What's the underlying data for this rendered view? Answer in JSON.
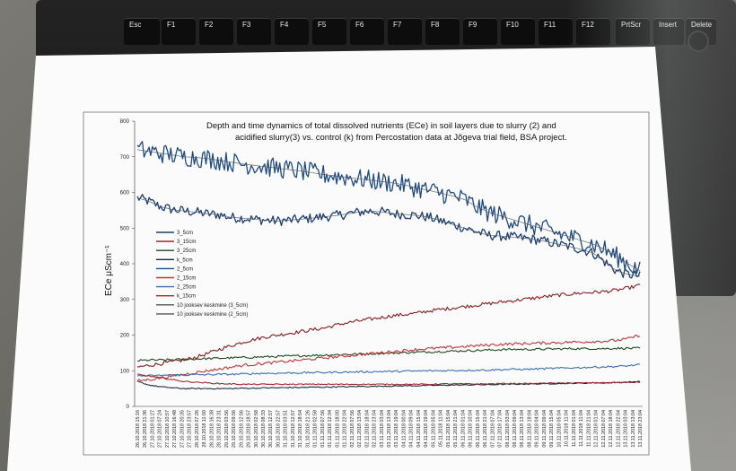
{
  "keyboard": {
    "keys": [
      "Esc",
      "F1",
      "F2",
      "F3",
      "F4",
      "F5",
      "F6",
      "F7",
      "F8",
      "F9",
      "F10",
      "F11",
      "F12",
      "PrtScr",
      "Insert",
      "Delete"
    ]
  },
  "colors": {
    "series_3_5cm": "#1b3f74",
    "series_3_15cm": "#8a1a1f",
    "series_3_25cm": "#1e4a1e",
    "series_k_5cm": "#1b2b3c",
    "series_2_5cm": "#1f4b85",
    "series_2_15cm": "#c0363a",
    "series_2_25cm": "#3c6fb4",
    "series_k_15cm": "#9e2a2f",
    "moving_avg": "#555555"
  },
  "chart_data": {
    "type": "line",
    "title_line1": "Depth and time dynamics of total dissolved nutrients (ECe) in soil layers due to slurry (2) and",
    "title_line2": "acidified slurry(3) vs. control (k) from Percostation data at Jõgeva trial field, BSA project.",
    "ylabel": "ECe μScm⁻¹",
    "ylim": [
      0,
      800
    ],
    "yticks": [
      "0",
      "100",
      "200",
      "300",
      "400",
      "500",
      "600",
      "700",
      "800"
    ],
    "grid": false,
    "legend_position": "left",
    "x_labels": [
      "26.10.2018 15:16",
      "26.10.2018 21:36",
      "27.10.2018 01:27",
      "27.10.2018 07:24",
      "27.10.2018 10:57",
      "27.10.2018 16:48",
      "27.10.2018 20:35",
      "27.10.2018 23:57",
      "28.10.2018 07:26",
      "28.10.2018 11:50",
      "28.10.2018 16:38",
      "28.10.2018 23:31",
      "29.10.2018 03:56",
      "29.10.2018 09:56",
      "29.10.2018 12:56",
      "29.10.2018 18:57",
      "30.10.2018 02:58",
      "30.10.2018 08:33",
      "30.10.2018 12:57",
      "30.10.2018 22:57",
      "31.10.2018 03:51",
      "31.10.2018 12:57",
      "31.10.2018 18:54",
      "31.10.2018 21:26",
      "01.11.2018 02:58",
      "01.11.2018 07:56",
      "01.11.2018 12:34",
      "01.11.2018 18:00",
      "01.11.2018 22:04",
      "02.11.2018 07:56",
      "02.11.2018 13:04",
      "02.11.2018 18:04",
      "02.11.2018 23:04",
      "03.11.2018 03:04",
      "03.11.2018 13:04",
      "03.11.2018 19:04",
      "04.11.2018 00:04",
      "04.11.2018 09:04",
      "04.11.2018 15:04",
      "04.11.2018 19:04",
      "05.11.2018 05:04",
      "05.11.2018 11:04",
      "05.11.2018 15:04",
      "05.11.2018 21:04",
      "06.11.2018 01:04",
      "06.11.2018 10:04",
      "06.11.2018 15:04",
      "06.11.2018 21:04",
      "07.11.2018 07:04",
      "07.11.2018 17:04",
      "08.11.2018 03:04",
      "08.11.2018 09:04",
      "08.11.2018 13:04",
      "08.11.2018 19:04",
      "09.11.2018 04:04",
      "09.11.2018 09:04",
      "09.11.2018 15:04",
      "10.11.2018 05:04",
      "10.11.2018 11:04",
      "11.11.2018 01:04",
      "11.11.2018 11:04",
      "11.11.2018 21:04",
      "12.11.2018 01:04",
      "12.11.2018 07:04",
      "12.11.2018 18:04",
      "12.11.2018 22:04",
      "13.11.2018 03:04",
      "13.11.2018 13:04",
      "13.11.2018 23:04"
    ],
    "series": [
      {
        "name": "3_5cm",
        "color_key": "series_3_5cm",
        "noise": 14,
        "values": [
          585,
          575,
          560,
          552,
          548,
          545,
          540,
          538,
          530,
          528,
          525,
          522,
          520,
          522,
          525,
          528,
          532,
          535,
          540,
          545,
          548,
          545,
          540,
          538,
          535,
          530,
          520,
          510,
          500,
          490,
          480,
          478,
          475,
          472,
          468,
          462,
          455,
          448,
          440,
          430,
          405,
          380,
          370,
          365
        ]
      },
      {
        "name": "3_15cm",
        "color_key": "series_3_15cm",
        "noise": 5,
        "values": [
          110,
          115,
          120,
          125,
          130,
          138,
          148,
          160,
          170,
          180,
          188,
          195,
          200,
          205,
          210,
          215,
          220,
          228,
          235,
          240,
          245,
          250,
          255,
          258,
          262,
          268,
          272,
          276,
          280,
          284,
          288,
          292,
          296,
          300,
          304,
          308,
          312,
          315,
          318,
          320,
          322,
          326,
          332,
          340
        ]
      },
      {
        "name": "3_25cm",
        "color_key": "series_3_25cm",
        "noise": 3,
        "values": [
          128,
          130,
          130,
          131,
          132,
          133,
          134,
          135,
          136,
          137,
          138,
          139,
          140,
          141,
          142,
          143,
          144,
          145,
          146,
          147,
          148,
          149,
          150,
          151,
          152,
          153,
          154,
          155,
          156,
          157,
          158,
          159,
          160,
          160,
          160,
          161,
          161,
          162,
          162,
          162,
          162,
          163,
          163,
          163
        ]
      },
      {
        "name": "k_5cm",
        "color_key": "series_k_5cm",
        "noise": 1.5,
        "values": [
          70,
          60,
          55,
          52,
          50,
          50,
          50,
          50,
          50,
          51,
          51,
          52,
          52,
          53,
          53,
          54,
          54,
          55,
          55,
          56,
          56,
          57,
          57,
          58,
          58,
          59,
          59,
          60,
          60,
          61,
          61,
          62,
          62,
          63,
          63,
          64,
          64,
          65,
          65,
          66,
          66,
          67,
          68,
          70
        ]
      },
      {
        "name": "2_5cm",
        "color_key": "series_2_5cm",
        "noise": 28,
        "values": [
          720,
          715,
          710,
          705,
          700,
          698,
          695,
          690,
          685,
          680,
          676,
          672,
          668,
          664,
          660,
          655,
          650,
          646,
          642,
          638,
          634,
          630,
          626,
          620,
          612,
          605,
          598,
          590,
          580,
          560,
          545,
          535,
          525,
          515,
          505,
          495,
          485,
          475,
          465,
          455,
          440,
          420,
          400,
          380
        ]
      },
      {
        "name": "2_15cm",
        "color_key": "series_2_15cm",
        "noise": 4,
        "values": [
          72,
          75,
          80,
          85,
          90,
          95,
          100,
          105,
          110,
          115,
          118,
          121,
          124,
          127,
          130,
          133,
          136,
          139,
          142,
          145,
          148,
          151,
          154,
          157,
          160,
          162,
          164,
          166,
          168,
          170,
          172,
          174,
          175,
          176,
          177,
          178,
          179,
          180,
          181,
          182,
          183,
          185,
          190,
          200
        ]
      },
      {
        "name": "2_25cm",
        "color_key": "series_2_25cm",
        "noise": 2.5,
        "values": [
          85,
          86,
          87,
          88,
          88,
          89,
          89,
          90,
          90,
          91,
          92,
          93,
          93,
          94,
          94,
          95,
          95,
          96,
          96,
          97,
          97,
          98,
          98,
          99,
          99,
          100,
          100,
          101,
          101,
          102,
          102,
          103,
          104,
          104,
          105,
          106,
          107,
          108,
          109,
          110,
          111,
          112,
          114,
          117
        ]
      },
      {
        "name": "k_15cm",
        "color_key": "series_k_15cm",
        "noise": 1.5,
        "values": [
          90,
          85,
          80,
          75,
          70,
          68,
          66,
          64,
          63,
          62,
          62,
          62,
          62,
          62,
          62,
          62,
          62,
          62,
          62,
          62,
          62,
          62,
          62,
          62,
          62,
          62,
          63,
          63,
          63,
          63,
          63,
          64,
          64,
          64,
          64,
          65,
          65,
          65,
          66,
          66,
          66,
          67,
          67,
          68
        ]
      },
      {
        "name": "10 jooksev keskmine (3_5cm)",
        "color_key": "moving_avg",
        "noise": 0,
        "values": [
          585,
          575,
          560,
          552,
          548,
          545,
          540,
          538,
          530,
          528,
          525,
          522,
          520,
          522,
          525,
          528,
          532,
          535,
          540,
          545,
          548,
          545,
          540,
          538,
          535,
          530,
          520,
          510,
          500,
          490,
          480,
          478,
          475,
          472,
          468,
          462,
          455,
          448,
          440,
          430,
          405,
          380,
          370,
          365
        ]
      },
      {
        "name": "10 jooksev keskmine (2_5cm)",
        "color_key": "moving_avg",
        "noise": 0,
        "values": [
          720,
          715,
          710,
          705,
          700,
          698,
          695,
          690,
          685,
          680,
          676,
          672,
          668,
          664,
          660,
          655,
          650,
          646,
          642,
          638,
          634,
          630,
          626,
          620,
          612,
          605,
          598,
          590,
          580,
          560,
          545,
          535,
          525,
          515,
          505,
          495,
          485,
          475,
          465,
          455,
          440,
          420,
          400,
          380
        ]
      }
    ]
  }
}
